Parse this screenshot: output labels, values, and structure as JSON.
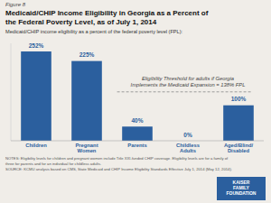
{
  "chart_data": {
    "type": "bar",
    "figure_label": "Figure 8",
    "title": "Medicaid/CHIP Income Eligibility in Georgia as a Percent of\nthe Federal Poverty Level, as of July 1, 2014",
    "subtitle": "Medicaid/CHIP income eligibility as a percent of the federal poverty level (FPL):",
    "categories": [
      "Children",
      "Pregnant\nWomen",
      "Parents",
      "Childless\nAdults",
      "Aged/Blind/\nDisabled"
    ],
    "values": [
      252,
      225,
      40,
      0,
      100
    ],
    "value_labels": [
      "252%",
      "225%",
      "40%",
      "0%",
      "100%"
    ],
    "data_labels": true,
    "color": "#2b5f9e",
    "background_color": "#f0ede8",
    "ylim": [
      0,
      275
    ],
    "tick_labels": "x",
    "grid": false,
    "threshold": 138,
    "threshold_label": "Eligibility Threshold  for adults if Georgia\nImplements the Medicaid Expansion = 138% FPL",
    "notes": [
      "NOTES: Eligibility levels for children and pregnant women include Title XXI-funded CHIP coverage. Eligibility levels are for a family of",
      "three for parents and for an individual for childless adults.",
      "SOURCE: KCMU analysis based on CMS, State Medicaid and CHIP Income Eligibility Standards Effective July 1, 2014 (May 12, 2014)."
    ],
    "logo_text": "KAISER\nFAMILY\nFOUNDATION"
  }
}
